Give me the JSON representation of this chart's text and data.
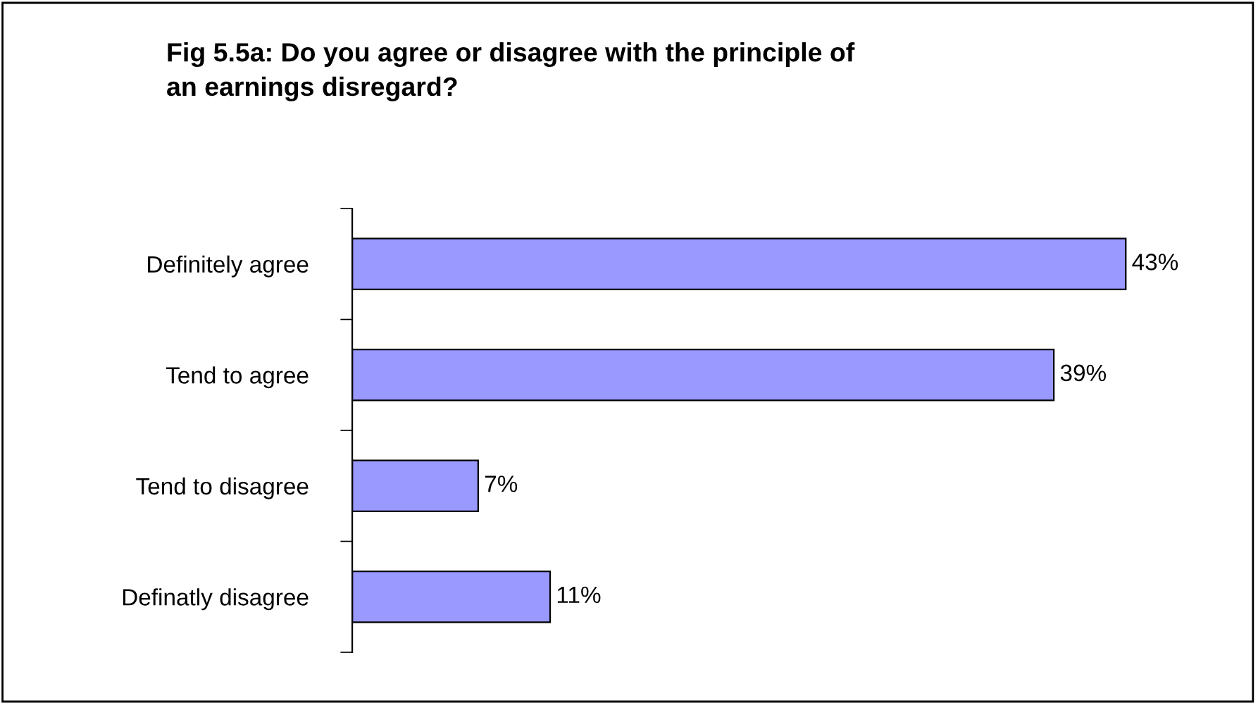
{
  "chart_data": {
    "type": "bar",
    "orientation": "horizontal",
    "title": "Fig 5.5a: Do you agree or disagree with the principle of\nan earnings disregard?",
    "categories": [
      "Definitely agree",
      "Tend to agree",
      "Tend to disagree",
      "Definatly disagree"
    ],
    "values": [
      43,
      39,
      7,
      11
    ],
    "value_labels": [
      "43%",
      "39%",
      "7%",
      "11%"
    ],
    "color": "#9999ff",
    "xlim": [
      0,
      50
    ],
    "tick_labels": "y",
    "grid": false,
    "legend": false
  }
}
